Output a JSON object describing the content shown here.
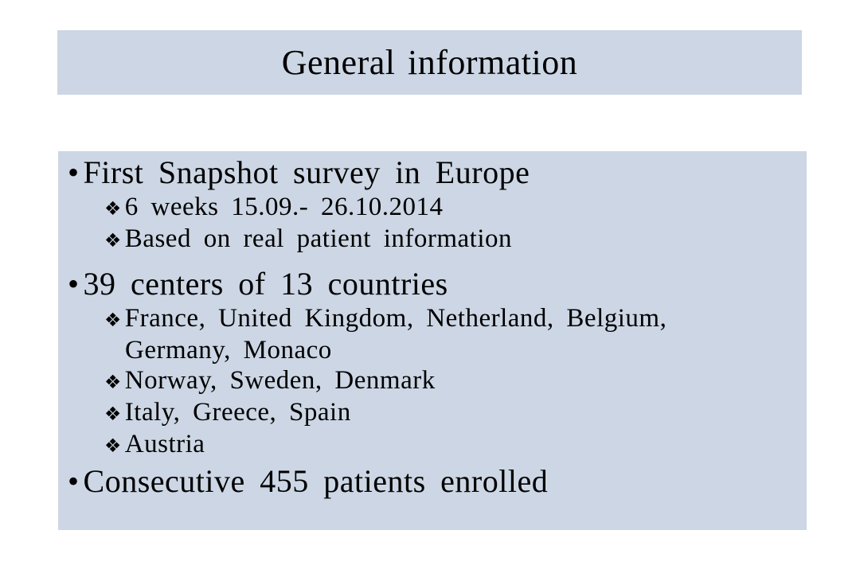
{
  "slide": {
    "title": "General information",
    "colors": {
      "panel_bg": "#ccd6e4",
      "page_bg": "#ffffff",
      "text": "#000000"
    },
    "bullets": [
      {
        "level": 1,
        "marker": "•",
        "text": "First Snapshot survey in Europe"
      },
      {
        "level": 2,
        "marker": "❖",
        "text": "6 weeks 15.09.- 26.10.2014"
      },
      {
        "level": 2,
        "marker": "❖",
        "text": "Based on real patient information"
      },
      {
        "level": 1,
        "marker": "•",
        "text": "39 centers of 13 countries"
      },
      {
        "level": 2,
        "marker": "❖",
        "text": "France, United Kingdom, Netherland, Belgium,",
        "text_continued": "Germany, Monaco"
      },
      {
        "level": 2,
        "marker": "❖",
        "text": "Norway, Sweden, Denmark"
      },
      {
        "level": 2,
        "marker": "❖",
        "text": "Italy, Greece, Spain"
      },
      {
        "level": 2,
        "marker": "❖",
        "text": "Austria"
      },
      {
        "level": 1,
        "marker": "•",
        "text": "Consecutive 455 patients enrolled"
      }
    ]
  }
}
